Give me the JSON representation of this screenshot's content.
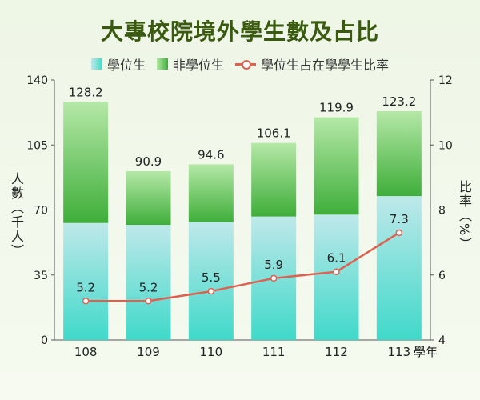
{
  "title": "大專校院境外學生數及占比",
  "legend": {
    "degree": "學位生",
    "non_degree": "非學位生",
    "ratio": "學位生占在學學生比率"
  },
  "colors": {
    "degree_top": "#bfe8ea",
    "degree_bottom": "#3fd9c9",
    "nondeg_top": "#b5e8a7",
    "nondeg_bottom": "#3fae3a",
    "line": "#e06050",
    "title": "#3a5a10"
  },
  "chart_data": {
    "type": "bar",
    "stacked": true,
    "categories": [
      "108",
      "109",
      "110",
      "111",
      "112",
      "113"
    ],
    "x_unit_label": "學年",
    "series": [
      {
        "name": "學位生",
        "values": [
          63.0,
          62.0,
          63.5,
          66.5,
          67.5,
          77.5
        ]
      },
      {
        "name": "非學位生",
        "values": [
          65.2,
          28.9,
          31.1,
          39.6,
          52.4,
          45.7
        ]
      }
    ],
    "totals": [
      128.2,
      90.9,
      94.6,
      106.1,
      119.9,
      123.2
    ],
    "totals_labels": [
      "128.2",
      "90.9",
      "94.6",
      "106.1",
      "119.9",
      "123.2"
    ],
    "line_series": {
      "name": "學位生占在學學生比率",
      "values": [
        5.2,
        5.2,
        5.5,
        5.9,
        6.1,
        7.3
      ],
      "labels": [
        "5.2",
        "5.2",
        "5.5",
        "5.9",
        "6.1",
        "7.3"
      ]
    },
    "ylabel": "人數（千人）",
    "ylim": [
      0,
      140
    ],
    "yticks": [
      "0",
      "35",
      "70",
      "105",
      "140"
    ],
    "y2label": "比率（%）",
    "y2lim": [
      4,
      12
    ],
    "y2ticks": [
      "4",
      "6",
      "8",
      "10",
      "12"
    ]
  }
}
